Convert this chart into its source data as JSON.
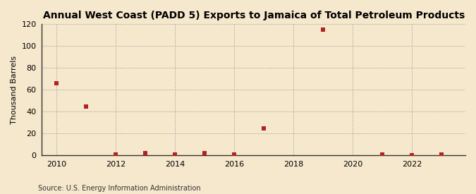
{
  "title": "Annual West Coast (PADD 5) Exports to Jamaica of Total Petroleum Products",
  "ylabel": "Thousand Barrels",
  "source": "Source: U.S. Energy Information Administration",
  "background_color": "#f5e8cc",
  "plot_bg_color": "#f5e8cc",
  "years": [
    2010,
    2011,
    2012,
    2013,
    2014,
    2015,
    2016,
    2017,
    2019,
    2021,
    2022,
    2023
  ],
  "values": [
    66,
    45,
    1,
    2,
    1,
    2,
    1,
    25,
    115,
    1,
    0,
    1
  ],
  "marker_color": "#b22222",
  "marker_size": 4,
  "xlim": [
    2009.5,
    2023.8
  ],
  "ylim": [
    0,
    120
  ],
  "yticks": [
    0,
    20,
    40,
    60,
    80,
    100,
    120
  ],
  "xticks": [
    2010,
    2012,
    2014,
    2016,
    2018,
    2020,
    2022
  ],
  "grid_color": "#aaaaaa",
  "title_fontsize": 10,
  "ylabel_fontsize": 8,
  "tick_fontsize": 8,
  "source_fontsize": 7
}
